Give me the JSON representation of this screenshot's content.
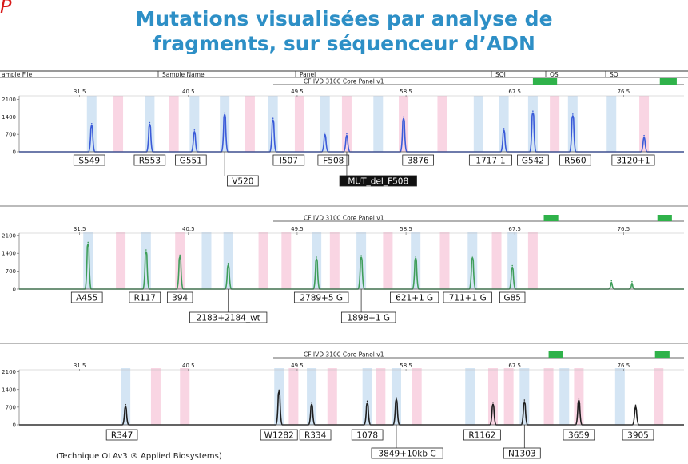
{
  "page": {
    "corner_label": "P",
    "title_line1": "Mutations visualisées par analyse de",
    "title_line2": "fragments, sur séquenceur d’ADN",
    "footnote": "(Technique OLAv3 ® Applied Biosystems)"
  },
  "header": {
    "sample_file": "ample File",
    "sample_name": "Sample Name",
    "panel": "Panel",
    "sqi": "SQI",
    "os": "OS",
    "sq": "SQ"
  },
  "colors": {
    "title": "#2d8fc6",
    "bin_blue": "#cfe2f3",
    "bin_pink": "#f8d0e0",
    "trace_blue": "#3a5bd9",
    "trace_green": "#3f9e5a",
    "trace_black": "#1f1f1f",
    "flag_green": "#2fb24a"
  },
  "chart_data": [
    {
      "type": "line",
      "panel_label": "CF IVD 3100 Core Panel v1",
      "x_ticks": [
        "31.5",
        "40.5",
        "49.5",
        "58.5",
        "67.5",
        "76.5"
      ],
      "x_tick_values": [
        31.5,
        40.5,
        49.5,
        58.5,
        67.5,
        76.5
      ],
      "y_ticks": [
        "2100",
        "1400",
        "700",
        "0"
      ],
      "y_tick_values": [
        2100,
        1400,
        700,
        0
      ],
      "xlim": [
        26.5,
        81.5
      ],
      "ylim": [
        0,
        2500
      ],
      "trace_color": "blue",
      "peaks": [
        {
          "x": 32.5,
          "y": 1130
        },
        {
          "x": 37.3,
          "y": 1170
        },
        {
          "x": 41.0,
          "y": 870
        },
        {
          "x": 43.5,
          "y": 1560
        },
        {
          "x": 47.5,
          "y": 1340
        },
        {
          "x": 51.8,
          "y": 750
        },
        {
          "x": 53.6,
          "y": 720
        },
        {
          "x": 58.3,
          "y": 1400
        },
        {
          "x": 66.6,
          "y": 930
        },
        {
          "x": 69.0,
          "y": 1630
        },
        {
          "x": 72.3,
          "y": 1510
        },
        {
          "x": 78.2,
          "y": 650
        }
      ],
      "bins": [
        {
          "x": 32.5,
          "c": "blue"
        },
        {
          "x": 34.7,
          "c": "pink"
        },
        {
          "x": 37.3,
          "c": "blue"
        },
        {
          "x": 39.3,
          "c": "pink"
        },
        {
          "x": 41.0,
          "c": "blue"
        },
        {
          "x": 43.5,
          "c": "blue"
        },
        {
          "x": 45.6,
          "c": "pink"
        },
        {
          "x": 47.5,
          "c": "blue"
        },
        {
          "x": 49.7,
          "c": "pink"
        },
        {
          "x": 51.8,
          "c": "blue"
        },
        {
          "x": 53.6,
          "c": "pink"
        },
        {
          "x": 56.2,
          "c": "blue"
        },
        {
          "x": 58.3,
          "c": "pink"
        },
        {
          "x": 61.5,
          "c": "pink"
        },
        {
          "x": 64.5,
          "c": "blue"
        },
        {
          "x": 66.6,
          "c": "blue"
        },
        {
          "x": 69.0,
          "c": "blue"
        },
        {
          "x": 70.8,
          "c": "pink"
        },
        {
          "x": 72.3,
          "c": "blue"
        },
        {
          "x": 75.5,
          "c": "blue"
        },
        {
          "x": 78.2,
          "c": "pink"
        }
      ],
      "labels": [
        {
          "text": "S549",
          "x": 32.3,
          "row": 1
        },
        {
          "text": "R553",
          "x": 37.3,
          "row": 1
        },
        {
          "text": "G551",
          "x": 40.7,
          "row": 1
        },
        {
          "text": "I507",
          "x": 48.8,
          "row": 1
        },
        {
          "text": "F508",
          "x": 52.5,
          "row": 1
        },
        {
          "text": "3876",
          "x": 59.5,
          "row": 1
        },
        {
          "text": "1717-1",
          "x": 65.5,
          "row": 1
        },
        {
          "text": "G542",
          "x": 69.0,
          "row": 1
        },
        {
          "text": "R560",
          "x": 72.5,
          "row": 1
        },
        {
          "text": "3120+1",
          "x": 77.3,
          "row": 1
        },
        {
          "text": "V520",
          "x": 45.0,
          "row": 2,
          "from": 43.5
        },
        {
          "text": "MUT_del_F508",
          "x": 56.2,
          "row": 2,
          "from": 53.6,
          "dark": true
        }
      ],
      "flags": [
        {
          "x": 69.0,
          "w": 2.0
        },
        {
          "x": 79.5,
          "w": 1.4
        }
      ]
    },
    {
      "type": "line",
      "panel_label": "CF IVD 3100 Core Panel v1",
      "x_ticks": [
        "31.5",
        "40.5",
        "49.5",
        "58.5",
        "67.5",
        "76.5"
      ],
      "x_tick_values": [
        31.5,
        40.5,
        49.5,
        58.5,
        67.5,
        76.5
      ],
      "y_ticks": [
        "2100",
        "1400",
        "700",
        "0"
      ],
      "y_tick_values": [
        2100,
        1400,
        700,
        0
      ],
      "xlim": [
        26.5,
        81.5
      ],
      "ylim": [
        0,
        2500
      ],
      "trace_color": "green",
      "peaks": [
        {
          "x": 32.2,
          "y": 1830
        },
        {
          "x": 37.0,
          "y": 1530
        },
        {
          "x": 39.8,
          "y": 1330
        },
        {
          "x": 43.8,
          "y": 1010
        },
        {
          "x": 51.1,
          "y": 1250
        },
        {
          "x": 54.8,
          "y": 1310
        },
        {
          "x": 59.3,
          "y": 1280
        },
        {
          "x": 64.0,
          "y": 1290
        },
        {
          "x": 67.3,
          "y": 920
        },
        {
          "x": 75.5,
          "y": 330
        },
        {
          "x": 77.2,
          "y": 290
        }
      ],
      "bins": [
        {
          "x": 32.2,
          "c": "blue"
        },
        {
          "x": 34.9,
          "c": "pink"
        },
        {
          "x": 37.0,
          "c": "blue"
        },
        {
          "x": 39.8,
          "c": "pink"
        },
        {
          "x": 42.0,
          "c": "blue"
        },
        {
          "x": 43.8,
          "c": "blue"
        },
        {
          "x": 46.7,
          "c": "pink"
        },
        {
          "x": 48.6,
          "c": "pink"
        },
        {
          "x": 51.1,
          "c": "blue"
        },
        {
          "x": 52.6,
          "c": "pink"
        },
        {
          "x": 54.8,
          "c": "blue"
        },
        {
          "x": 57.0,
          "c": "pink"
        },
        {
          "x": 59.3,
          "c": "blue"
        },
        {
          "x": 61.7,
          "c": "pink"
        },
        {
          "x": 64.0,
          "c": "blue"
        },
        {
          "x": 66.0,
          "c": "pink"
        },
        {
          "x": 67.3,
          "c": "blue"
        },
        {
          "x": 69.0,
          "c": "pink"
        }
      ],
      "labels": [
        {
          "text": "A455",
          "x": 32.1,
          "row": 1
        },
        {
          "text": "R117",
          "x": 36.9,
          "row": 1
        },
        {
          "text": "394",
          "x": 39.8,
          "row": 1
        },
        {
          "text": "2789+5 G",
          "x": 51.5,
          "row": 1
        },
        {
          "text": "621+1 G",
          "x": 59.2,
          "row": 1
        },
        {
          "text": "711+1 G",
          "x": 63.6,
          "row": 1
        },
        {
          "text": "G85",
          "x": 67.3,
          "row": 1
        },
        {
          "text": "2183+2184_wt",
          "x": 43.8,
          "row": 2,
          "from": 43.8
        },
        {
          "text": "1898+1 G",
          "x": 55.4,
          "row": 2,
          "from": 54.8
        }
      ],
      "flags": [
        {
          "x": 69.9,
          "w": 1.2
        },
        {
          "x": 79.3,
          "w": 1.2
        }
      ]
    },
    {
      "type": "line",
      "panel_label": "CF IVD 3100 Core Panel v1",
      "x_ticks": [
        "31.5",
        "40.5",
        "49.5",
        "58.5",
        "67.5",
        "76.5"
      ],
      "x_tick_values": [
        31.5,
        40.5,
        49.5,
        58.5,
        67.5,
        76.5
      ],
      "y_ticks": [
        "2100",
        "1400",
        "700",
        "0"
      ],
      "y_tick_values": [
        2100,
        1400,
        700,
        0
      ],
      "xlim": [
        26.5,
        81.5
      ],
      "ylim": [
        0,
        2500
      ],
      "trace_color": "black",
      "peaks": [
        {
          "x": 35.3,
          "y": 800
        },
        {
          "x": 48.0,
          "y": 1380
        },
        {
          "x": 50.7,
          "y": 880
        },
        {
          "x": 55.3,
          "y": 940
        },
        {
          "x": 57.7,
          "y": 1070
        },
        {
          "x": 65.7,
          "y": 880
        },
        {
          "x": 68.3,
          "y": 980
        },
        {
          "x": 72.8,
          "y": 1040
        },
        {
          "x": 77.5,
          "y": 780
        }
      ],
      "bins": [
        {
          "x": 35.3,
          "c": "blue"
        },
        {
          "x": 37.8,
          "c": "pink"
        },
        {
          "x": 40.2,
          "c": "pink"
        },
        {
          "x": 48.0,
          "c": "blue"
        },
        {
          "x": 49.2,
          "c": "pink"
        },
        {
          "x": 50.7,
          "c": "blue"
        },
        {
          "x": 52.4,
          "c": "pink"
        },
        {
          "x": 55.3,
          "c": "blue"
        },
        {
          "x": 56.4,
          "c": "pink"
        },
        {
          "x": 57.7,
          "c": "blue"
        },
        {
          "x": 59.4,
          "c": "pink"
        },
        {
          "x": 63.8,
          "c": "blue"
        },
        {
          "x": 65.7,
          "c": "pink"
        },
        {
          "x": 67.0,
          "c": "pink"
        },
        {
          "x": 68.3,
          "c": "blue"
        },
        {
          "x": 70.3,
          "c": "pink"
        },
        {
          "x": 71.6,
          "c": "blue"
        },
        {
          "x": 72.8,
          "c": "pink"
        },
        {
          "x": 76.2,
          "c": "blue"
        },
        {
          "x": 79.4,
          "c": "pink"
        }
      ],
      "labels": [
        {
          "text": "R347",
          "x": 35.0,
          "row": 1
        },
        {
          "text": "W1282",
          "x": 48.0,
          "row": 1
        },
        {
          "text": "R334",
          "x": 51.0,
          "row": 1
        },
        {
          "text": "1078",
          "x": 55.3,
          "row": 1
        },
        {
          "text": "R1162",
          "x": 64.8,
          "row": 1
        },
        {
          "text": "3659",
          "x": 72.8,
          "row": 1
        },
        {
          "text": "3905",
          "x": 77.7,
          "row": 1
        },
        {
          "text": "3849+10kb C",
          "x": 58.6,
          "row": 2,
          "from": 57.7
        },
        {
          "text": "N1303",
          "x": 68.1,
          "row": 2,
          "from": 68.3
        }
      ],
      "flags": [
        {
          "x": 70.3,
          "w": 1.2
        },
        {
          "x": 79.1,
          "w": 1.2
        }
      ]
    }
  ]
}
